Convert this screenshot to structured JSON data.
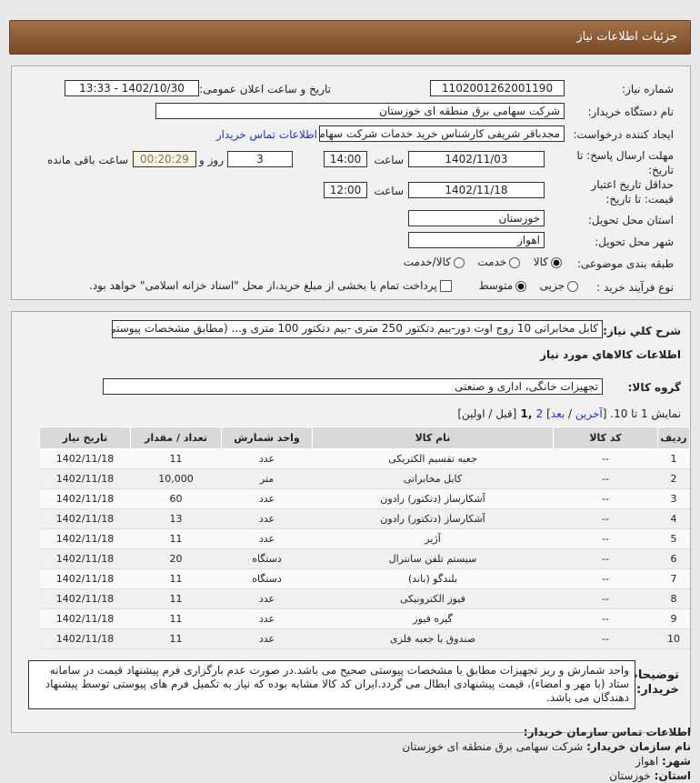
{
  "header": {
    "title": "جزئیات اطلاعات نیاز"
  },
  "form": {
    "need_number_label": "شماره نیاز:",
    "need_number": "1102001262001190",
    "announce_label": "تاریخ و ساعت اعلان عمومی:",
    "announce_value": "1402/10/30 - 13:33",
    "buyer_label": "نام دستگاه خریدار:",
    "buyer": "شرکت سهامی برق منطقه ای خوزستان",
    "creator_label": "ایجاد کننده درخواست:",
    "creator": "مجدباقر شریفی کارشناس خرید خدمات شرکت سهامی برق منطقه ای خوزستان",
    "contact_link": "اطلاعات تماس خریدار",
    "deadline_label": "مهلت ارسال پاسخ: تا تاریخ:",
    "deadline_date": "1402/11/03",
    "time_label": "ساعت",
    "deadline_time": "14:00",
    "days": "3",
    "days_label": "روز و",
    "remaining": "00:20:29",
    "remaining_label": "ساعت باقی مانده",
    "validity_label": "حداقل تاریخ اعتبار قیمت: تا تاریخ:",
    "validity_date": "1402/11/18",
    "validity_time": "12:00",
    "province_label": "استان محل تحویل:",
    "province": "خوزستان",
    "city_label": "شهر محل تحویل:",
    "city": "اهواز",
    "category_label": "طبقه بندی موضوعی:",
    "category_options": [
      "کالا",
      "خدمت",
      "کالا/خدمت"
    ],
    "category_selected": "کالا",
    "process_label": "نوع فرآیند خرید :",
    "process_options": [
      "جزیی",
      "متوسط"
    ],
    "process_selected": "متوسط",
    "payment_note": "پرداخت تمام یا بخشی از مبلغ خرید،از محل \"اسناد خزانه اسلامی\" خواهد بود."
  },
  "details": {
    "summary_label": "شرح کلي نياز:",
    "summary": "کابل مخابراتی 10 زوج اوت دور-بیم دتکتور 250 متری -بیم دتکتور 100 متری و... (مطابق مشخصات پیوستی)",
    "goods_title": "اطلاعات کالاهاي مورد نياز",
    "group_label": "گروه کالا:",
    "group": "تجهیزات خانگی، اداری و صنعتی",
    "pager": {
      "text": "نمایش 1 تا 10. [",
      "last": "آخرین",
      "sep": " / ",
      "next": "بعد",
      "close": "] ",
      "p2": "2",
      "cur": " ,1 ",
      "rest": "[قبل / اولین]"
    },
    "columns": [
      "ردیف",
      "کد کالا",
      "نام کالا",
      "واحد شمارش",
      "تعداد / مقدار",
      "تاریخ نیاز"
    ],
    "rows": [
      [
        "1",
        "--",
        "جعبه تقسیم الکتریکی",
        "عدد",
        "11",
        "1402/11/18"
      ],
      [
        "2",
        "--",
        "کابل مخابراتی",
        "متر",
        "10,000",
        "1402/11/18"
      ],
      [
        "3",
        "--",
        "آشکارساز (دتکتور) رادون",
        "عدد",
        "60",
        "1402/11/18"
      ],
      [
        "4",
        "--",
        "آشکارساز (دتکتور) رادون",
        "عدد",
        "13",
        "1402/11/18"
      ],
      [
        "5",
        "--",
        "آژیر",
        "عدد",
        "11",
        "1402/11/18"
      ],
      [
        "6",
        "--",
        "سیستم تلفن سانترال",
        "دستگاه",
        "20",
        "1402/11/18"
      ],
      [
        "7",
        "--",
        "بلندگو (باند)",
        "دستگاه",
        "11",
        "1402/11/18"
      ],
      [
        "8",
        "--",
        "فیوز الکترونیکی",
        "عدد",
        "11",
        "1402/11/18"
      ],
      [
        "9",
        "--",
        "گیره فیوز",
        "عدد",
        "11",
        "1402/11/18"
      ],
      [
        "10",
        "--",
        "صندوق یا جعبه فلزی",
        "عدد",
        "11",
        "1402/11/18"
      ]
    ],
    "notes_label": "توضیحات خریدار:",
    "notes": "واحد شمارش و ریز تجهیزات مطابق با مشخصات پیوستی صحیح می باشد.در صورت عدم بارگزاری فرم پیشنهاد قیمت در سامانه ستاد (با مهر و امضاء)، قیمت پیشنهادی ابطال می گردد.ایران کد کالا مشابه بوده که نیاز به تکمیل فرم های پیوستی توسط پیشنهاد دهندگان می باشد."
  },
  "contact": {
    "title": "اطلاعات تماس سازمان خریدار:",
    "org_label": "نام سازمان خریدار:",
    "org": "شرکت سهامی برق منطقه ای خوزستان",
    "city_label": "شهر:",
    "city": "اهواز",
    "province_label": "استان:",
    "province": "خوزستان"
  }
}
